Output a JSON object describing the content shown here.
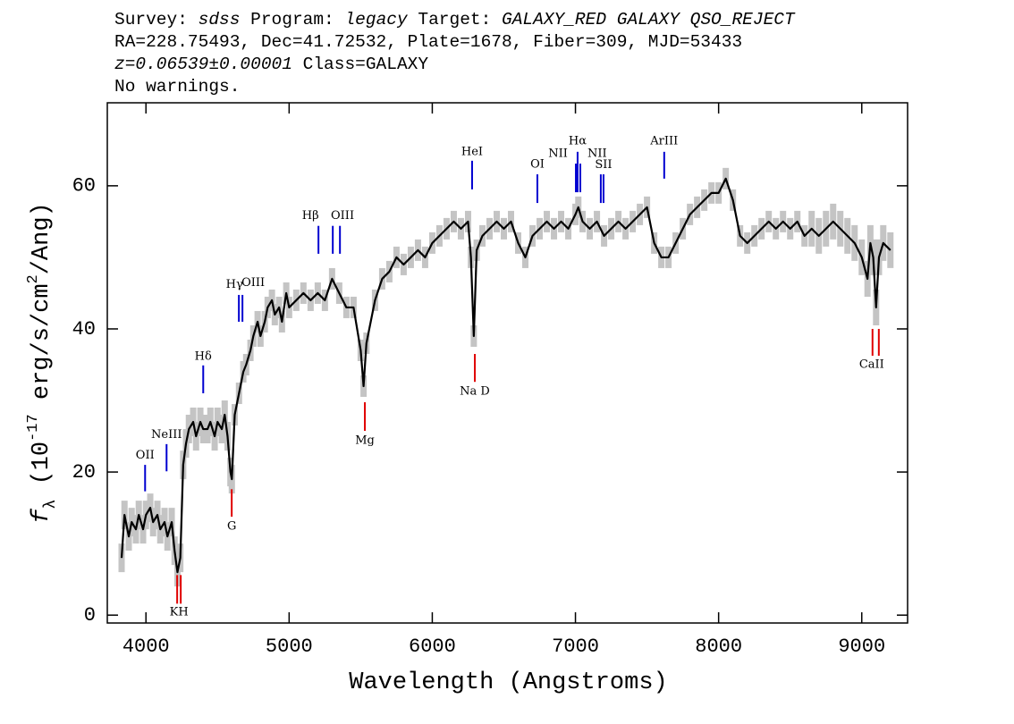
{
  "chart_data": {
    "type": "line",
    "title_lines": [
      [
        {
          "text": "Survey: ",
          "italic": false
        },
        {
          "text": "sdss",
          "italic": true
        },
        {
          "text": " Program: ",
          "italic": false
        },
        {
          "text": "legacy",
          "italic": true
        },
        {
          "text": " Target: ",
          "italic": false
        },
        {
          "text": "GALAXY_RED GALAXY QSO_REJECT",
          "italic": true
        }
      ],
      [
        {
          "text": "RA=228.75493, Dec=41.72532, Plate=1678, Fiber=309, MJD=53433",
          "italic": false
        }
      ],
      [
        {
          "text": "z=0.06539±0.00001",
          "italic": true
        },
        {
          "text": " Class=GALAXY",
          "italic": false
        }
      ],
      [
        {
          "text": "No warnings.",
          "italic": false
        }
      ]
    ],
    "xlabel": "Wavelength (Angstroms)",
    "ylabel": [
      {
        "text": "f",
        "style": "italic"
      },
      {
        "text": "λ",
        "style": "sub"
      },
      {
        "text": " (10",
        "style": "normal"
      },
      {
        "text": "-17",
        "style": "sup"
      },
      {
        "text": " erg/s/cm",
        "style": "normal"
      },
      {
        "text": "2",
        "style": "sup"
      },
      {
        "text": "/Ang)",
        "style": "normal"
      }
    ],
    "xlim": [
      3730,
      9320
    ],
    "ylim": [
      -1.1,
      71.6
    ],
    "xticks": [
      4000,
      5000,
      6000,
      7000,
      8000,
      9000
    ],
    "yticks": [
      0,
      20,
      40,
      60
    ],
    "x": [
      3830,
      3850,
      3880,
      3900,
      3930,
      3950,
      3980,
      4000,
      4030,
      4050,
      4080,
      4100,
      4130,
      4150,
      4180,
      4200,
      4220,
      4240,
      4260,
      4280,
      4300,
      4330,
      4350,
      4380,
      4400,
      4430,
      4450,
      4480,
      4500,
      4530,
      4550,
      4570,
      4590,
      4600,
      4620,
      4650,
      4680,
      4700,
      4730,
      4750,
      4780,
      4800,
      4830,
      4850,
      4880,
      4900,
      4930,
      4950,
      4980,
      5000,
      5050,
      5100,
      5150,
      5200,
      5250,
      5300,
      5350,
      5400,
      5450,
      5500,
      5520,
      5540,
      5600,
      5650,
      5700,
      5750,
      5800,
      5850,
      5900,
      5950,
      6000,
      6050,
      6100,
      6150,
      6200,
      6250,
      6270,
      6290,
      6310,
      6350,
      6400,
      6450,
      6500,
      6550,
      6600,
      6650,
      6700,
      6750,
      6800,
      6850,
      6900,
      6950,
      7000,
      7020,
      7050,
      7100,
      7150,
      7200,
      7250,
      7300,
      7350,
      7400,
      7450,
      7500,
      7550,
      7600,
      7650,
      7700,
      7750,
      7800,
      7850,
      7900,
      7950,
      8000,
      8050,
      8100,
      8150,
      8200,
      8250,
      8300,
      8350,
      8400,
      8450,
      8500,
      8550,
      8600,
      8650,
      8700,
      8750,
      8800,
      8850,
      8900,
      8950,
      9000,
      9040,
      9060,
      9080,
      9100,
      9120,
      9150,
      9200
    ],
    "series": [
      {
        "color": "#000000",
        "error_color": "#c4c4c4",
        "values": [
          8,
          14,
          11,
          13,
          12,
          14,
          12,
          14,
          15,
          13,
          14,
          12,
          13,
          11,
          13,
          9,
          6,
          8,
          21,
          24,
          26,
          27,
          25,
          27,
          26,
          26,
          27,
          25,
          27,
          26,
          28,
          25,
          20,
          19,
          28,
          31,
          34,
          35,
          37,
          39,
          41,
          39,
          41,
          43,
          44,
          42,
          43,
          41,
          45,
          43,
          44,
          45,
          44,
          45,
          44,
          47,
          45,
          43,
          43,
          37,
          32,
          38,
          44,
          47,
          48,
          50,
          49,
          50,
          51,
          50,
          52,
          53,
          54,
          55,
          54,
          55,
          50,
          39,
          51,
          53,
          54,
          55,
          54,
          55,
          52,
          50,
          53,
          54,
          55,
          54,
          55,
          54,
          56,
          57,
          55,
          54,
          55,
          53,
          54,
          55,
          54,
          55,
          56,
          57,
          52,
          50,
          50,
          52,
          54,
          56,
          57,
          58,
          59,
          59,
          61,
          58,
          53,
          52,
          53,
          54,
          55,
          54,
          55,
          54,
          55,
          53,
          54,
          53,
          54,
          55,
          54,
          53,
          52,
          50,
          47,
          52,
          50,
          43,
          50,
          52,
          51
        ],
        "errors": [
          2,
          2,
          2,
          2,
          2,
          2,
          2,
          2,
          2,
          2,
          2,
          2,
          2,
          2,
          2,
          2,
          2,
          2,
          2,
          2,
          2,
          2,
          2,
          2,
          2,
          2,
          2,
          2,
          2,
          2,
          2,
          2,
          2,
          2,
          1.5,
          1.5,
          1.5,
          1.5,
          1.5,
          1.5,
          1.5,
          1.5,
          1.5,
          1.5,
          1.5,
          1.5,
          1.5,
          1.5,
          1.5,
          1.5,
          1.5,
          1.5,
          1.5,
          1.5,
          1.5,
          1.5,
          1.5,
          1.5,
          1.5,
          1.5,
          1.5,
          1.5,
          1.5,
          1.5,
          1.5,
          1.5,
          1.5,
          1.5,
          1.5,
          1.5,
          1.5,
          1.5,
          1.5,
          1.5,
          1.5,
          1.5,
          1.5,
          1.5,
          1.5,
          1.5,
          1.5,
          1.5,
          1.5,
          1.5,
          1.5,
          1.5,
          1.5,
          1.5,
          1.5,
          1.5,
          1.5,
          1.5,
          1.5,
          1.5,
          1.5,
          1.5,
          1.5,
          1.5,
          1.5,
          1.5,
          1.5,
          1.5,
          1.5,
          1.5,
          1.5,
          1.5,
          1.5,
          1.5,
          1.5,
          1.5,
          1.5,
          1.5,
          1.5,
          1.5,
          1.5,
          1.5,
          1.5,
          1.5,
          1.5,
          1.5,
          1.5,
          1.5,
          1.5,
          1.5,
          1.5,
          1.5,
          2.5,
          2.5,
          2.5,
          2.5,
          2.5,
          2.5,
          2.5,
          2.5,
          2.5,
          2.5,
          2.5,
          2.5,
          2.5,
          2.5,
          2.5
        ]
      }
    ],
    "emission_lines": {
      "color": "#0000d0",
      "lines": [
        {
          "label": "OII",
          "x": [
            3994
          ],
          "y": [
            17.3,
            21
          ],
          "label_x": 3994,
          "label_y": 22.3
        },
        {
          "label": "NeIII",
          "x": [
            4144
          ],
          "y": [
            20.1,
            23.9
          ],
          "label_x": 4144,
          "label_y": 25.2
        },
        {
          "label": "Hδ",
          "x": [
            4400
          ],
          "y": [
            31,
            34.9
          ],
          "label_x": 4400,
          "label_y": 36.1
        },
        {
          "label": "Hγ",
          "x": [
            4649
          ],
          "y": [
            41,
            44.75
          ],
          "label_x": 4618,
          "label_y": 46.2
        },
        {
          "label": "OIII",
          "x": [
            4674
          ],
          "y": [
            41,
            44.75
          ],
          "label_x": 4749,
          "label_y": 46.4
        },
        {
          "label": "Hβ",
          "x": [
            5205
          ],
          "y": [
            50.5,
            54.4
          ],
          "label_x": 5149,
          "label_y": 55.8
        },
        {
          "label": "OIII",
          "x": [
            5305,
            5355
          ],
          "y": [
            50.5,
            54.4
          ],
          "label_x": 5373,
          "label_y": 55.8
        },
        {
          "label": "HeI",
          "x": [
            6278
          ],
          "y": [
            59.5,
            63.5
          ],
          "label_x": 6278,
          "label_y": 64.75
        },
        {
          "label": "OI",
          "x": [
            6734
          ],
          "y": [
            57.6,
            61.6
          ],
          "label_x": 6734,
          "label_y": 63
        },
        {
          "label": "NII",
          "x": [
            7003
          ],
          "y": [
            59.1,
            63.1
          ],
          "label_x": 6878,
          "label_y": 64.5
        },
        {
          "label": "Hα",
          "x": [
            7015
          ],
          "y": [
            59.1,
            64.75
          ],
          "label_x": 7015,
          "label_y": 66.25
        },
        {
          "label": "NII",
          "x": [
            7034
          ],
          "y": [
            59.1,
            63.1
          ],
          "label_x": 7152,
          "label_y": 64.5
        },
        {
          "label": "SII",
          "x": [
            7177,
            7196
          ],
          "y": [
            57.6,
            61.6
          ],
          "label_x": 7196,
          "label_y": 62.9
        },
        {
          "label": "ArIII",
          "x": [
            7620
          ],
          "y": [
            61,
            64.75
          ],
          "label_x": 7620,
          "label_y": 66.25
        }
      ]
    },
    "absorption_lines": {
      "color": "#e00000",
      "lines": [
        {
          "label": "KH",
          "x": [
            4218,
            4243
          ],
          "y": [
            1.6,
            5.6
          ],
          "label_x": 4231,
          "label_y": 0.4
        },
        {
          "label": "G",
          "x": [
            4599
          ],
          "y": [
            13.75,
            17.6
          ],
          "label_x": 4599,
          "label_y": 12.4
        },
        {
          "label": "Mg",
          "x": [
            5529
          ],
          "y": [
            25.75,
            29.75
          ],
          "label_x": 5529,
          "label_y": 24.4
        },
        {
          "label": "Na D",
          "x": [
            6297
          ],
          "y": [
            32.6,
            36.5
          ],
          "label_x": 6297,
          "label_y": 31.25
        },
        {
          "label": "CaII",
          "x": [
            9075,
            9119
          ],
          "y": [
            36.25,
            40
          ],
          "label_x": 9069,
          "label_y": 35
        }
      ]
    }
  }
}
